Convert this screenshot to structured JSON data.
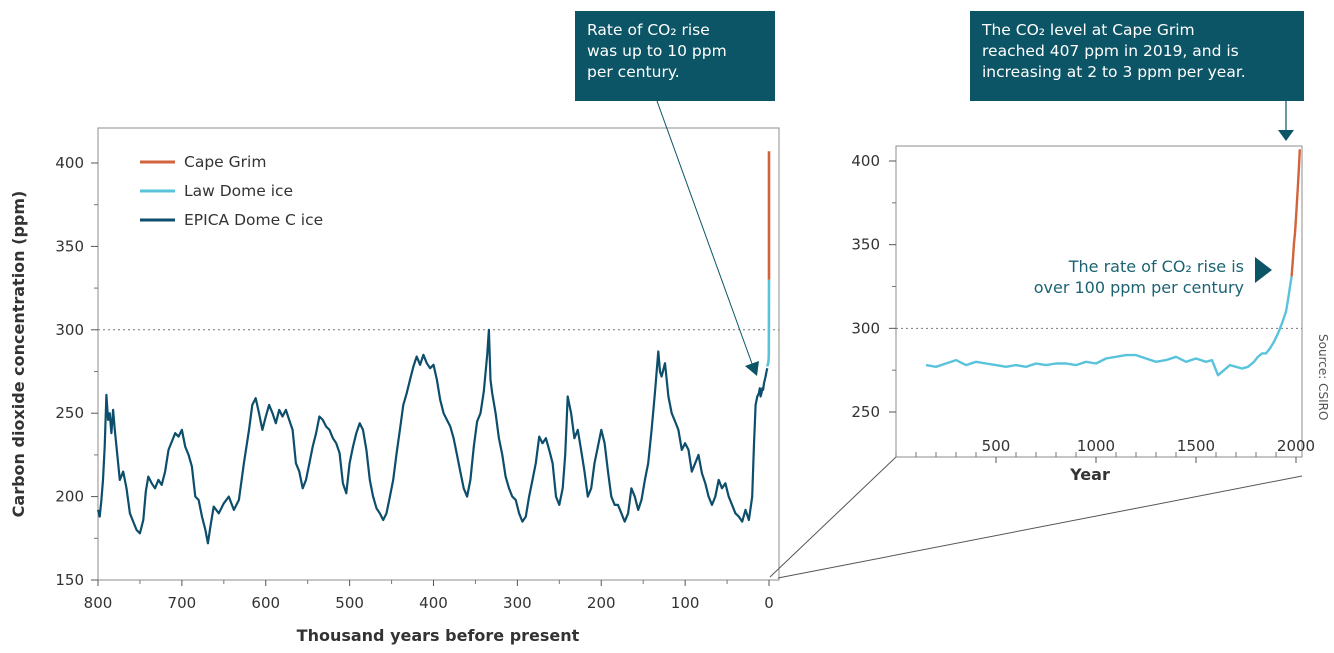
{
  "colors": {
    "cape_grim": "#d0643c",
    "law_dome": "#59c3dc",
    "epica": "#0c4e6c",
    "callout_bg": "#0c5566",
    "annotation_text": "#1b6373",
    "reference_line": "#777777"
  },
  "callouts": {
    "left": [
      "Rate of CO₂ rise",
      "was up to 10 ppm",
      "per century."
    ],
    "right": [
      "The CO₂ level at Cape Grim",
      "reached 407 ppm in 2019, and is",
      "increasing at 2 to 3 ppm per year."
    ]
  },
  "inner_annotation": [
    "The rate of CO₂ rise is",
    "over 100 ppm per century"
  ],
  "source": "Source: CSIRO",
  "chart_data": [
    {
      "type": "line",
      "xlabel": "Thousand years before present",
      "ylabel": "Carbon dioxide concentration (ppm)",
      "xlim": [
        800,
        0
      ],
      "ylim": [
        150,
        410
      ],
      "x_reversed": true,
      "xticks": [
        800,
        700,
        600,
        500,
        400,
        300,
        200,
        100,
        0
      ],
      "xtick_labels": [
        "800",
        "700",
        "600",
        "500",
        "400",
        "300",
        "200",
        "100",
        "0"
      ],
      "yticks": [
        150,
        200,
        250,
        300,
        350,
        400
      ],
      "ytick_labels": [
        "150",
        "200",
        "250",
        "300",
        "350",
        "400"
      ],
      "reference_line_y": 300,
      "legend_position": "top-left",
      "series": [
        {
          "name": "Cape Grim",
          "color_key": "cape_grim",
          "x": [
            0.05,
            0.0
          ],
          "y": [
            330,
            407
          ]
        },
        {
          "name": "Law Dome ice",
          "color_key": "law_dome",
          "x": [
            2.0,
            1.5,
            1.0,
            0.5,
            0.2,
            0.1,
            0.05
          ],
          "y": [
            278,
            279,
            280,
            282,
            285,
            300,
            330
          ]
        },
        {
          "name": "EPICA Dome C ice",
          "color_key": "epica",
          "x": [
            800,
            798,
            796,
            794,
            792,
            790,
            788,
            786,
            784,
            782,
            780,
            777,
            774,
            770,
            766,
            762,
            758,
            754,
            750,
            746,
            743,
            740,
            736,
            732,
            728,
            724,
            720,
            716,
            712,
            708,
            704,
            700,
            696,
            692,
            688,
            684,
            680,
            676,
            672,
            669,
            666,
            662,
            656,
            650,
            644,
            638,
            632,
            626,
            620,
            616,
            612,
            608,
            604,
            600,
            596,
            592,
            588,
            584,
            580,
            576,
            572,
            568,
            564,
            560,
            556,
            552,
            548,
            544,
            540,
            536,
            532,
            528,
            524,
            520,
            516,
            512,
            508,
            504,
            500,
            496,
            492,
            488,
            484,
            480,
            476,
            472,
            468,
            464,
            460,
            456,
            452,
            448,
            444,
            440,
            436,
            432,
            428,
            424,
            420,
            416,
            412,
            408,
            404,
            400,
            396,
            392,
            388,
            384,
            380,
            376,
            372,
            368,
            364,
            360,
            356,
            352,
            348,
            344,
            340,
            336,
            334,
            332,
            330,
            326,
            322,
            318,
            314,
            310,
            306,
            302,
            298,
            294,
            290,
            286,
            282,
            278,
            274,
            270,
            266,
            262,
            258,
            254,
            250,
            246,
            243,
            240,
            236,
            232,
            228,
            224,
            220,
            216,
            212,
            208,
            204,
            200,
            196,
            192,
            188,
            184,
            180,
            176,
            172,
            168,
            164,
            160,
            156,
            152,
            148,
            144,
            140,
            136,
            132,
            130,
            128,
            124,
            120,
            116,
            112,
            108,
            104,
            100,
            96,
            92,
            88,
            84,
            80,
            76,
            72,
            68,
            64,
            60,
            56,
            52,
            48,
            44,
            40,
            36,
            32,
            28,
            24,
            20,
            18,
            16,
            14,
            12,
            11,
            10,
            9,
            8,
            7,
            6,
            5,
            4,
            3,
            2
          ],
          "y": [
            192,
            188,
            198,
            210,
            230,
            261,
            246,
            250,
            238,
            252,
            240,
            225,
            210,
            215,
            205,
            190,
            185,
            180,
            178,
            186,
            203,
            212,
            208,
            205,
            210,
            207,
            215,
            228,
            233,
            238,
            236,
            240,
            230,
            225,
            218,
            200,
            198,
            188,
            180,
            172,
            182,
            194,
            190,
            196,
            200,
            192,
            198,
            220,
            240,
            255,
            259,
            250,
            240,
            248,
            255,
            250,
            244,
            252,
            248,
            252,
            246,
            240,
            220,
            215,
            205,
            210,
            220,
            230,
            238,
            248,
            246,
            242,
            240,
            235,
            232,
            226,
            208,
            202,
            220,
            230,
            238,
            244,
            240,
            228,
            210,
            200,
            193,
            190,
            186,
            190,
            200,
            210,
            226,
            240,
            255,
            262,
            270,
            278,
            284,
            279,
            285,
            280,
            277,
            279,
            270,
            258,
            250,
            246,
            242,
            235,
            225,
            215,
            205,
            200,
            210,
            230,
            245,
            250,
            263,
            285,
            300,
            270,
            262,
            250,
            235,
            225,
            212,
            205,
            200,
            198,
            190,
            185,
            188,
            200,
            210,
            220,
            236,
            232,
            235,
            228,
            220,
            200,
            195,
            205,
            225,
            260,
            250,
            235,
            240,
            228,
            215,
            200,
            205,
            220,
            230,
            240,
            232,
            215,
            200,
            195,
            195,
            190,
            185,
            190,
            205,
            200,
            192,
            198,
            210,
            220,
            240,
            262,
            287,
            275,
            272,
            280,
            260,
            250,
            245,
            240,
            228,
            232,
            228,
            215,
            220,
            225,
            214,
            208,
            200,
            195,
            200,
            210,
            205,
            208,
            200,
            195,
            190,
            188,
            185,
            192,
            186,
            200,
            230,
            255,
            260,
            262,
            265,
            260,
            262,
            265,
            264,
            268,
            270,
            272,
            275,
            277
          ]
        }
      ],
      "annotation": "Rate of CO₂ rise was up to 10 ppm per century."
    },
    {
      "type": "line",
      "xlabel": "Year",
      "ylabel": "",
      "xlim": [
        0,
        2030
      ],
      "ylim": [
        244,
        410
      ],
      "xticks": [
        500,
        1000,
        1500,
        2000
      ],
      "xtick_labels": [
        "500",
        "1000",
        "1500",
        "2000"
      ],
      "minor_xticks": [
        0,
        100,
        200,
        300,
        400,
        600,
        700,
        800,
        900,
        1100,
        1200,
        1300,
        1400,
        1600,
        1700,
        1800,
        1900
      ],
      "yticks": [
        250,
        300,
        350,
        400
      ],
      "ytick_labels": [
        "250",
        "300",
        "350",
        "400"
      ],
      "reference_line_y": 300,
      "series": [
        {
          "name": "Law Dome ice",
          "color_key": "law_dome",
          "x": [
            150,
            200,
            250,
            300,
            350,
            400,
            450,
            500,
            550,
            600,
            650,
            700,
            750,
            800,
            850,
            900,
            950,
            1000,
            1050,
            1100,
            1150,
            1200,
            1250,
            1300,
            1350,
            1400,
            1450,
            1500,
            1550,
            1580,
            1610,
            1640,
            1670,
            1700,
            1730,
            1760,
            1790,
            1810,
            1830,
            1850,
            1870,
            1890,
            1910,
            1930,
            1950,
            1960,
            1970,
            1978
          ],
          "y": [
            278,
            277,
            279,
            281,
            278,
            280,
            279,
            278,
            277,
            278,
            277,
            279,
            278,
            279,
            279,
            278,
            280,
            279,
            282,
            283,
            284,
            284,
            282,
            280,
            281,
            283,
            280,
            282,
            280,
            281,
            272,
            275,
            278,
            277,
            276,
            277,
            280,
            283,
            285,
            285,
            288,
            292,
            297,
            303,
            310,
            317,
            325,
            331
          ]
        },
        {
          "name": "Cape Grim",
          "color_key": "cape_grim",
          "x": [
            1978,
            1985,
            1990,
            1995,
            2000,
            2005,
            2010,
            2015,
            2019
          ],
          "y": [
            331,
            342,
            351,
            357,
            366,
            376,
            386,
            397,
            407
          ]
        }
      ],
      "annotation": "The CO₂ level at Cape Grim reached 407 ppm in 2019, and is increasing at 2 to 3 ppm per year."
    }
  ]
}
